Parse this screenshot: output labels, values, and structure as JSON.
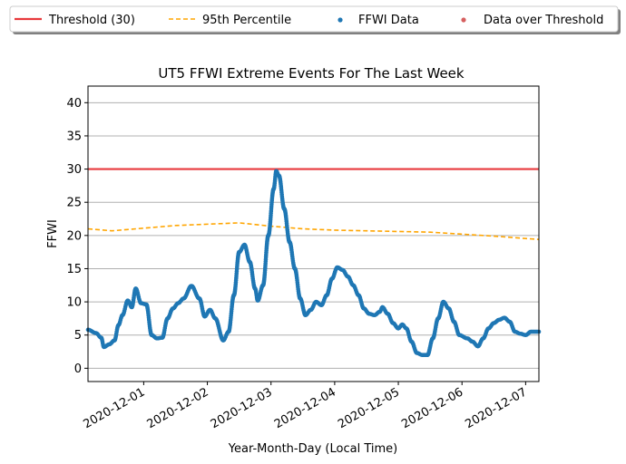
{
  "chart_data": {
    "type": "scatter",
    "title": "UT5 FFWI Extreme Events For The Last Week",
    "xlabel": "Year-Month-Day (Local Time)",
    "ylabel": "FFWI",
    "ylim": [
      -2,
      42.5
    ],
    "xlim": [
      "2020-11-30T03:00",
      "2020-12-07T05:00"
    ],
    "yticks": [
      "0",
      "5",
      "10",
      "15",
      "20",
      "25",
      "30",
      "35",
      "40"
    ],
    "xticks": [
      "2020-12-01",
      "2020-12-02",
      "2020-12-03",
      "2020-12-04",
      "2020-12-05",
      "2020-12-06",
      "2020-12-07"
    ],
    "grid": "horizontal",
    "legend": {
      "placement": "top",
      "entries": [
        "Threshold (30)",
        "95th Percentile",
        "FFWI Data",
        "Data over Threshold"
      ]
    },
    "threshold": {
      "name": "Threshold (30)",
      "value": 30,
      "color": "#e8393c"
    },
    "percentile": {
      "name": "95th Percentile",
      "color": "#ffa500",
      "points": [
        [
          "2020-11-30T03:00",
          21.0
        ],
        [
          "2020-11-30T12:00",
          20.7
        ],
        [
          "2020-12-01T00:00",
          21.1
        ],
        [
          "2020-12-01T12:00",
          21.5
        ],
        [
          "2020-12-02T00:00",
          21.7
        ],
        [
          "2020-12-02T12:00",
          21.9
        ],
        [
          "2020-12-03T00:00",
          21.4
        ],
        [
          "2020-12-03T12:00",
          21.0
        ],
        [
          "2020-12-04T00:00",
          20.8
        ],
        [
          "2020-12-04T12:00",
          20.7
        ],
        [
          "2020-12-05T00:00",
          20.6
        ],
        [
          "2020-12-05T12:00",
          20.5
        ],
        [
          "2020-12-06T00:00",
          20.2
        ],
        [
          "2020-12-06T12:00",
          19.9
        ],
        [
          "2020-12-07T05:00",
          19.4
        ]
      ]
    },
    "ffwi": {
      "name": "FFWI Data",
      "color": "#1f77b4",
      "points": [
        [
          "2020-11-30T03:00",
          5.8
        ],
        [
          "2020-11-30T06:00",
          5.3
        ],
        [
          "2020-11-30T08:00",
          4.6
        ],
        [
          "2020-11-30T09:00",
          3.2
        ],
        [
          "2020-11-30T11:00",
          3.6
        ],
        [
          "2020-11-30T13:00",
          4.2
        ],
        [
          "2020-11-30T14:30",
          6.5
        ],
        [
          "2020-11-30T16:00",
          8.0
        ],
        [
          "2020-11-30T18:00",
          10.2
        ],
        [
          "2020-11-30T19:30",
          9.2
        ],
        [
          "2020-11-30T21:00",
          12.0
        ],
        [
          "2020-11-30T23:00",
          9.8
        ],
        [
          "2020-12-01T01:00",
          9.6
        ],
        [
          "2020-12-01T03:00",
          5.0
        ],
        [
          "2020-12-01T05:00",
          4.5
        ],
        [
          "2020-12-01T07:00",
          4.6
        ],
        [
          "2020-12-01T09:00",
          7.5
        ],
        [
          "2020-12-01T11:00",
          9.0
        ],
        [
          "2020-12-01T13:00",
          9.8
        ],
        [
          "2020-12-01T15:00",
          10.5
        ],
        [
          "2020-12-01T18:00",
          12.4
        ],
        [
          "2020-12-01T21:00",
          10.5
        ],
        [
          "2020-12-01T23:00",
          7.8
        ],
        [
          "2020-12-02T01:00",
          8.8
        ],
        [
          "2020-12-02T03:00",
          7.5
        ],
        [
          "2020-12-02T06:00",
          4.2
        ],
        [
          "2020-12-02T08:00",
          5.5
        ],
        [
          "2020-12-02T10:00",
          11.0
        ],
        [
          "2020-12-02T12:00",
          17.5
        ],
        [
          "2020-12-02T14:00",
          18.6
        ],
        [
          "2020-12-02T16:00",
          16.0
        ],
        [
          "2020-12-02T18:00",
          12.0
        ],
        [
          "2020-12-02T19:00",
          10.2
        ],
        [
          "2020-12-02T21:00",
          12.5
        ],
        [
          "2020-12-02T23:00",
          20.0
        ],
        [
          "2020-12-03T01:00",
          27.0
        ],
        [
          "2020-12-03T02:00",
          29.7
        ],
        [
          "2020-12-03T03:00",
          29.0
        ],
        [
          "2020-12-03T05:00",
          24.0
        ],
        [
          "2020-12-03T07:00",
          19.0
        ],
        [
          "2020-12-03T09:00",
          15.0
        ],
        [
          "2020-12-03T11:00",
          10.5
        ],
        [
          "2020-12-03T13:00",
          8.0
        ],
        [
          "2020-12-03T15:00",
          8.8
        ],
        [
          "2020-12-03T17:00",
          10.0
        ],
        [
          "2020-12-03T19:00",
          9.5
        ],
        [
          "2020-12-03T21:00",
          11.0
        ],
        [
          "2020-12-03T23:00",
          13.5
        ],
        [
          "2020-12-04T01:00",
          15.2
        ],
        [
          "2020-12-04T03:00",
          14.8
        ],
        [
          "2020-12-04T05:00",
          13.8
        ],
        [
          "2020-12-04T07:00",
          12.5
        ],
        [
          "2020-12-04T09:00",
          11.0
        ],
        [
          "2020-12-04T11:00",
          9.0
        ],
        [
          "2020-12-04T13:00",
          8.2
        ],
        [
          "2020-12-04T15:00",
          8.0
        ],
        [
          "2020-12-04T17:00",
          8.5
        ],
        [
          "2020-12-04T18:00",
          9.2
        ],
        [
          "2020-12-04T20:00",
          8.2
        ],
        [
          "2020-12-04T22:00",
          6.8
        ],
        [
          "2020-12-05T00:00",
          6.0
        ],
        [
          "2020-12-05T01:30",
          6.6
        ],
        [
          "2020-12-05T03:00",
          6.0
        ],
        [
          "2020-12-05T05:00",
          4.0
        ],
        [
          "2020-12-05T07:00",
          2.3
        ],
        [
          "2020-12-05T09:00",
          2.0
        ],
        [
          "2020-12-05T11:00",
          2.0
        ],
        [
          "2020-12-05T13:00",
          4.5
        ],
        [
          "2020-12-05T15:00",
          7.5
        ],
        [
          "2020-12-05T17:00",
          10.0
        ],
        [
          "2020-12-05T19:00",
          9.0
        ],
        [
          "2020-12-05T21:00",
          7.0
        ],
        [
          "2020-12-05T23:00",
          5.0
        ],
        [
          "2020-12-06T02:00",
          4.5
        ],
        [
          "2020-12-06T04:00",
          4.0
        ],
        [
          "2020-12-06T06:00",
          3.3
        ],
        [
          "2020-12-06T08:00",
          4.5
        ],
        [
          "2020-12-06T10:00",
          6.0
        ],
        [
          "2020-12-06T12:00",
          6.8
        ],
        [
          "2020-12-06T14:00",
          7.3
        ],
        [
          "2020-12-06T16:00",
          7.6
        ],
        [
          "2020-12-06T18:00",
          7.0
        ],
        [
          "2020-12-06T20:00",
          5.5
        ],
        [
          "2020-12-06T22:00",
          5.2
        ],
        [
          "2020-12-07T00:00",
          5.0
        ],
        [
          "2020-12-07T02:00",
          5.5
        ],
        [
          "2020-12-07T05:00",
          5.5
        ]
      ]
    },
    "over_threshold": {
      "name": "Data over Threshold",
      "color": "#d65f5f",
      "points": []
    }
  }
}
